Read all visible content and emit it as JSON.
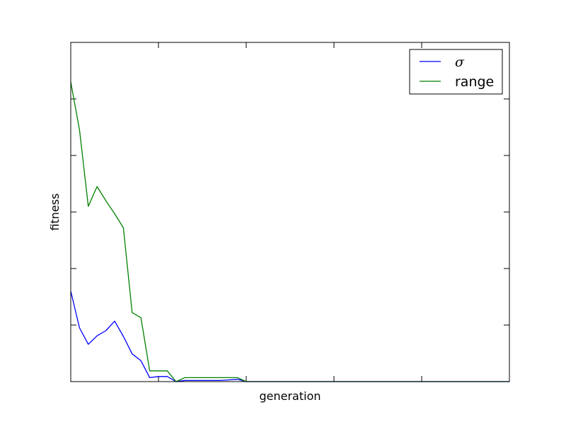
{
  "chart_data": {
    "type": "line",
    "title": "",
    "xlabel": "generation",
    "ylabel": "fitness",
    "xlim": [
      0,
      50
    ],
    "ylim": [
      0,
      6
    ],
    "xticks": [
      0,
      10,
      20,
      30,
      40,
      50
    ],
    "yticks": [
      0,
      1,
      2,
      3,
      4,
      5,
      6
    ],
    "tick_labels_shown": false,
    "grid": false,
    "legend_position": "top-right",
    "series": [
      {
        "name": "σ",
        "color": "#0000ff",
        "x": [
          0,
          1,
          2,
          3,
          4,
          5,
          6,
          7,
          8,
          9,
          10,
          11,
          12,
          13,
          14,
          15,
          16,
          17,
          18,
          19,
          20,
          21,
          22,
          23,
          24,
          25,
          26,
          27,
          28,
          29,
          30,
          31,
          32,
          33,
          34,
          35,
          36,
          37,
          38,
          39,
          40,
          41,
          42,
          43,
          44,
          45,
          46,
          47,
          48,
          49,
          50
        ],
        "values": [
          1.6,
          0.95,
          0.66,
          0.81,
          0.9,
          1.07,
          0.8,
          0.49,
          0.37,
          0.07,
          0.09,
          0.09,
          0.0,
          0.02,
          0.02,
          0.02,
          0.02,
          0.02,
          0.03,
          0.04,
          0.0,
          0.0,
          0.0,
          0.0,
          0.0,
          0.0,
          0.0,
          0.0,
          0.0,
          0.0,
          0.0,
          0.0,
          0.0,
          0.0,
          0.0,
          0.0,
          0.0,
          0.0,
          0.0,
          0.0,
          0.0,
          0.0,
          0.0,
          0.0,
          0.0,
          0.0,
          0.0,
          0.0,
          0.0,
          0.0,
          0.0
        ]
      },
      {
        "name": "range",
        "color": "#008000",
        "x": [
          0,
          1,
          2,
          3,
          4,
          5,
          6,
          7,
          8,
          9,
          10,
          11,
          12,
          13,
          14,
          15,
          16,
          17,
          18,
          19,
          20,
          21,
          22,
          23,
          24,
          25,
          26,
          27,
          28,
          29,
          30,
          31,
          32,
          33,
          34,
          35,
          36,
          37,
          38,
          39,
          40,
          41,
          42,
          43,
          44,
          45,
          46,
          47,
          48,
          49,
          50
        ],
        "values": [
          5.3,
          4.45,
          3.1,
          3.45,
          3.2,
          2.97,
          2.72,
          1.22,
          1.13,
          0.19,
          0.19,
          0.19,
          0.0,
          0.07,
          0.07,
          0.07,
          0.07,
          0.07,
          0.07,
          0.07,
          0.0,
          0.0,
          0.0,
          0.0,
          0.0,
          0.0,
          0.0,
          0.0,
          0.0,
          0.0,
          0.0,
          0.0,
          0.0,
          0.0,
          0.0,
          0.0,
          0.0,
          0.0,
          0.0,
          0.0,
          0.0,
          0.0,
          0.0,
          0.0,
          0.0,
          0.0,
          0.0,
          0.0,
          0.0,
          0.0,
          0.0
        ]
      }
    ]
  }
}
